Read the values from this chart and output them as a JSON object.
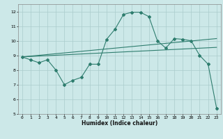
{
  "title": "",
  "xlabel": "Humidex (Indice chaleur)",
  "ylabel": "",
  "bg_color": "#cce8e8",
  "grid_color": "#aacccc",
  "line_color": "#2e7d6e",
  "xlim": [
    -0.5,
    23.5
  ],
  "ylim": [
    5,
    12.5
  ],
  "yticks": [
    5,
    6,
    7,
    8,
    9,
    10,
    11,
    12
  ],
  "xticks": [
    0,
    1,
    2,
    3,
    4,
    5,
    6,
    7,
    8,
    9,
    10,
    11,
    12,
    13,
    14,
    15,
    16,
    17,
    18,
    19,
    20,
    21,
    22,
    23
  ],
  "series1": {
    "x": [
      0,
      1,
      2,
      3,
      4,
      5,
      6,
      7,
      8,
      9,
      10,
      11,
      12,
      13,
      14,
      15,
      16,
      17,
      18,
      19,
      20,
      21,
      22,
      23
    ],
    "y": [
      8.9,
      8.7,
      8.5,
      8.7,
      8.0,
      7.0,
      7.3,
      7.5,
      8.4,
      8.4,
      10.1,
      10.8,
      11.8,
      11.95,
      11.95,
      11.65,
      10.0,
      9.5,
      10.15,
      10.1,
      10.0,
      9.0,
      8.4,
      5.4
    ]
  },
  "series2_linear": {
    "x": [
      0,
      23
    ],
    "y": [
      8.9,
      10.15
    ]
  },
  "series3_linear": {
    "x": [
      0,
      23
    ],
    "y": [
      8.9,
      9.55
    ]
  }
}
